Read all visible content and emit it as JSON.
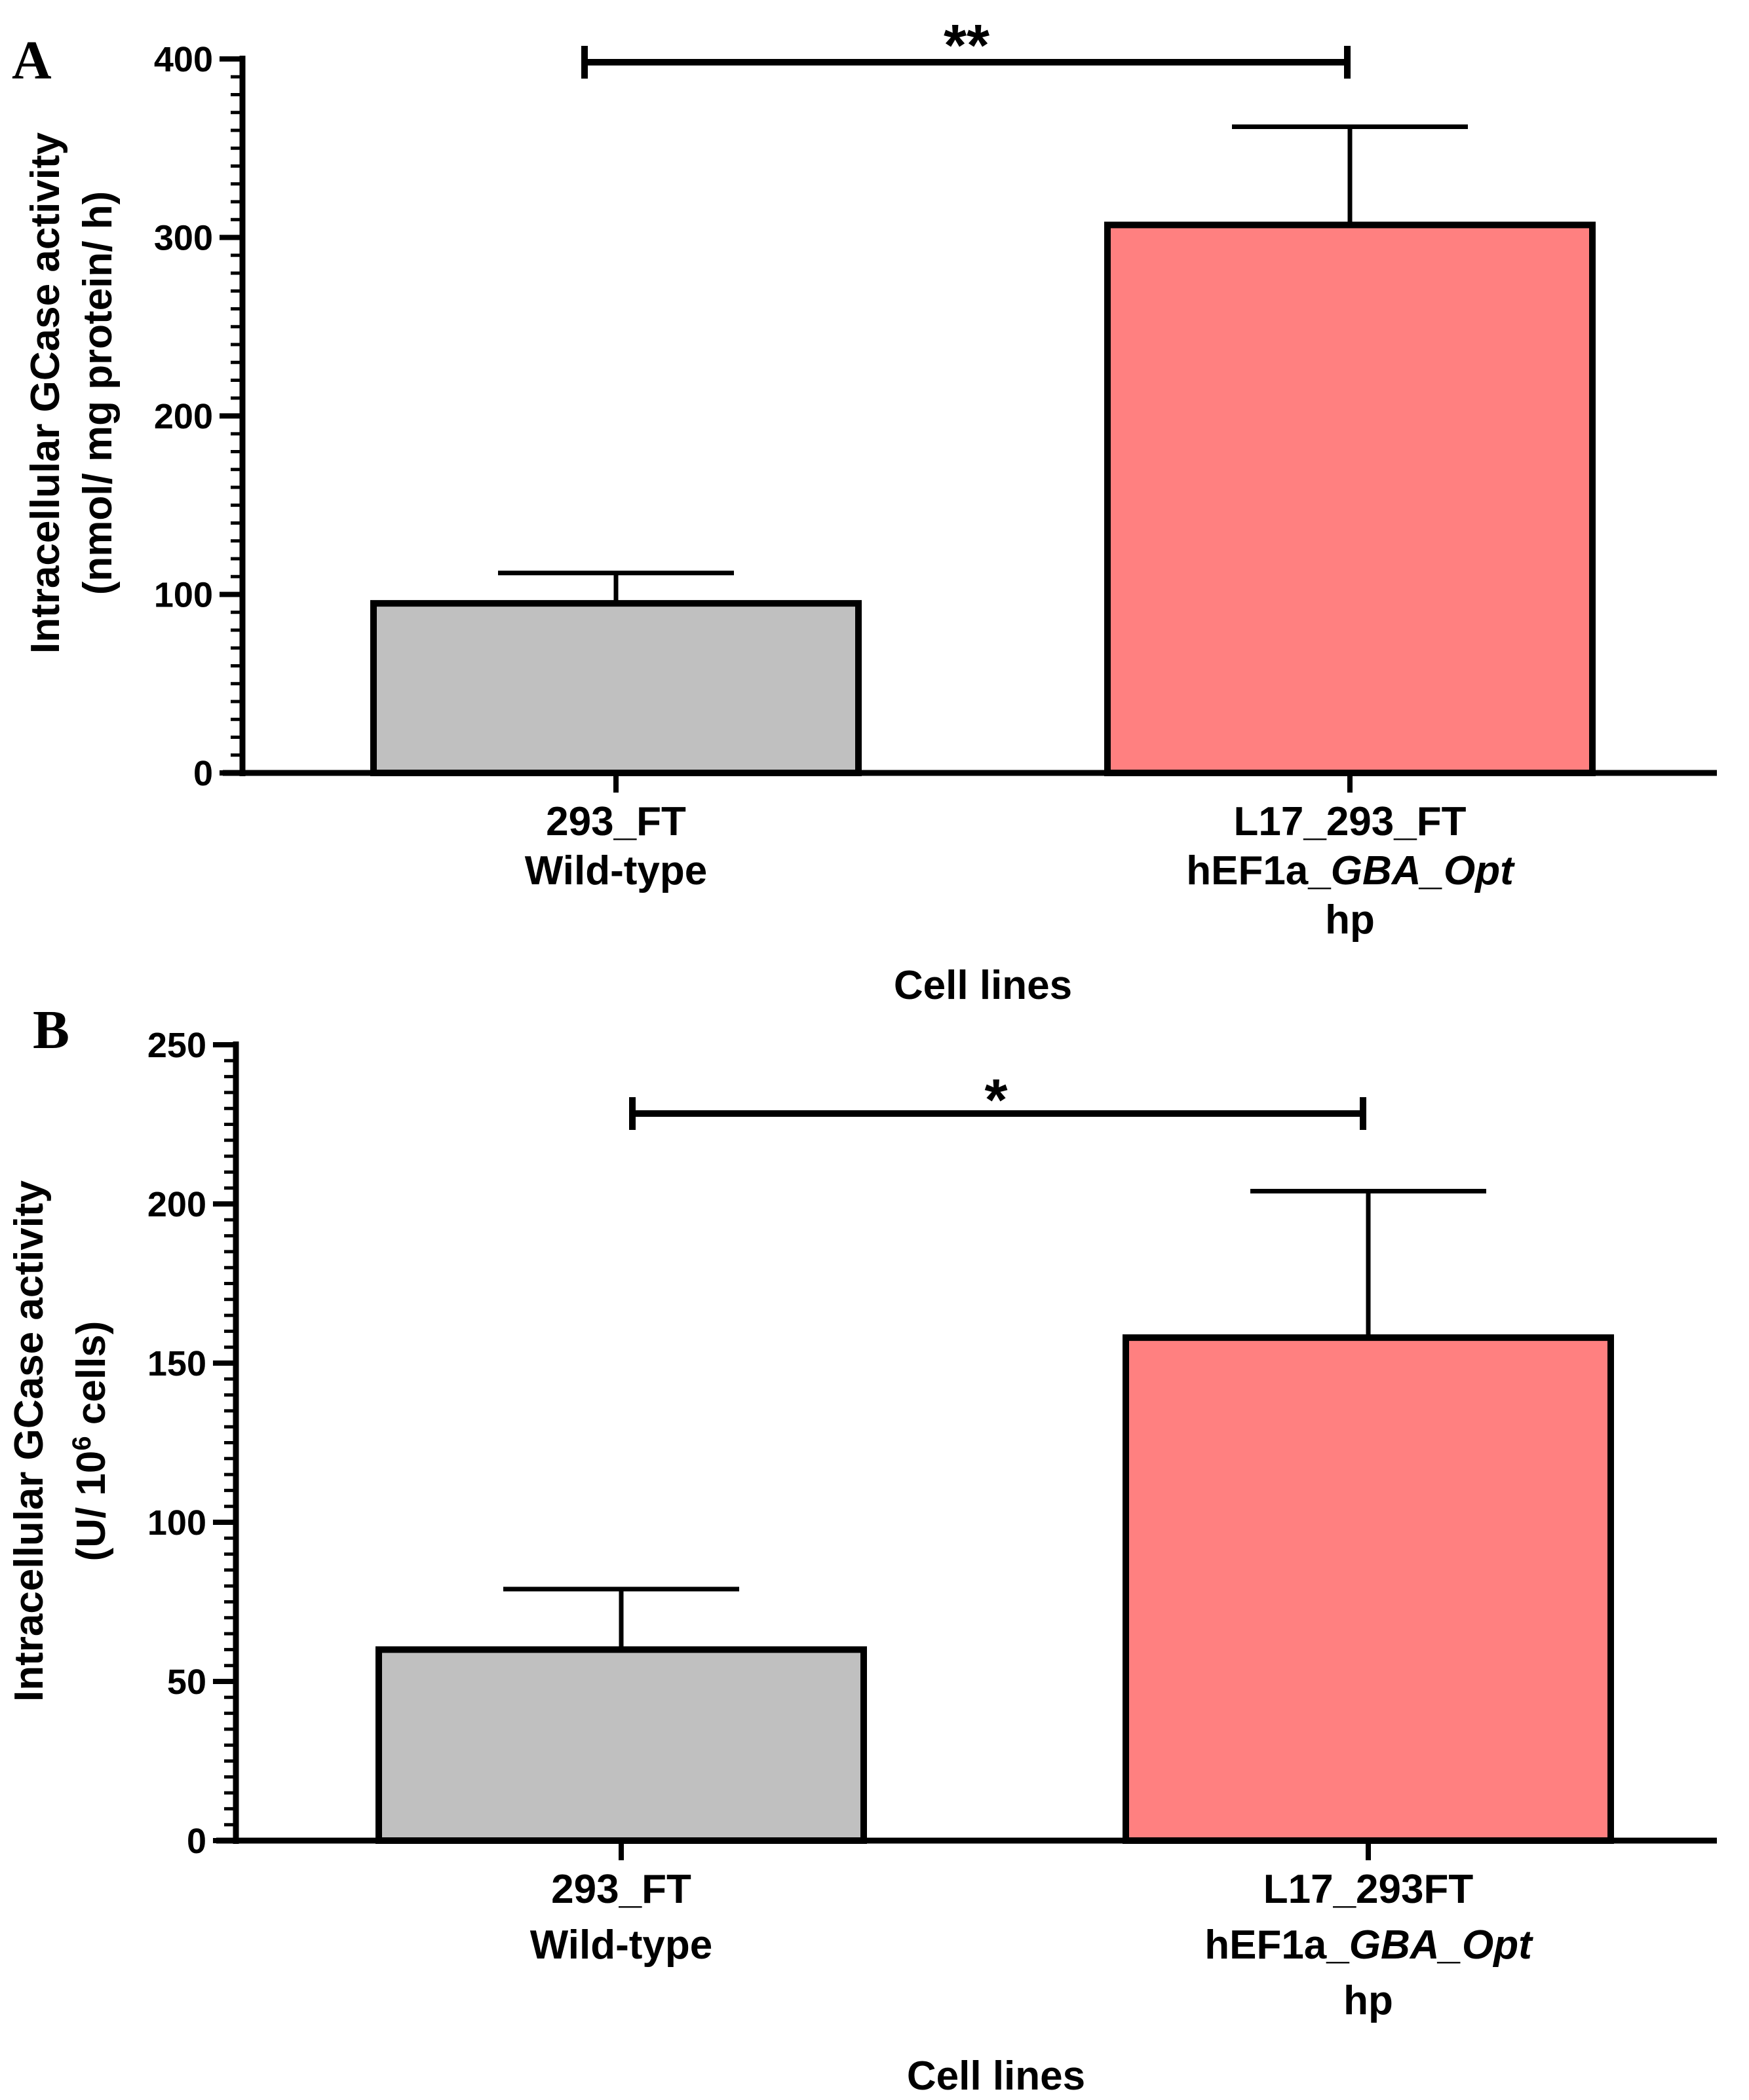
{
  "chart_data": [
    {
      "panel": "A",
      "type": "bar",
      "categories": [
        [
          "293_FT",
          "Wild-type"
        ],
        [
          "L17_293_FT",
          "hEF1a_GBA_Opt",
          "hp"
        ]
      ],
      "values": [
        95,
        307
      ],
      "errors_upper": [
        112,
        362
      ],
      "bar_colors": [
        "#c0c0c0",
        "#ff8080"
      ],
      "ylim": [
        0,
        400
      ],
      "yticks": [
        0,
        100,
        200,
        300,
        400
      ],
      "minor_tick_step": 10,
      "ylabel_lines": [
        "Intracellular GCase activity",
        "(nmol/ mg protein/ h)"
      ],
      "xlabel": "Cell lines",
      "significance": {
        "label": "**",
        "from": 0,
        "to": 1
      }
    },
    {
      "panel": "B",
      "type": "bar",
      "categories": [
        [
          "293_FT",
          "Wild-type"
        ],
        [
          "L17_293FT",
          "hEF1a_GBA_Opt",
          "hp"
        ]
      ],
      "values": [
        60,
        158
      ],
      "errors_upper": [
        79,
        204
      ],
      "bar_colors": [
        "#c0c0c0",
        "#ff8080"
      ],
      "ylim": [
        0,
        250
      ],
      "yticks": [
        0,
        50,
        100,
        150,
        200,
        250
      ],
      "minor_tick_step": 5,
      "ylabel_lines": [
        "Intracellular GCase activity",
        "(U/ 10^6 cells)"
      ],
      "ylabel_parts": {
        "prefix": "(U/ 10",
        "sup": "6",
        "suffix": " cells)"
      },
      "xlabel": "Cell lines",
      "significance": {
        "label": "*",
        "from": 0,
        "to": 1
      }
    }
  ]
}
